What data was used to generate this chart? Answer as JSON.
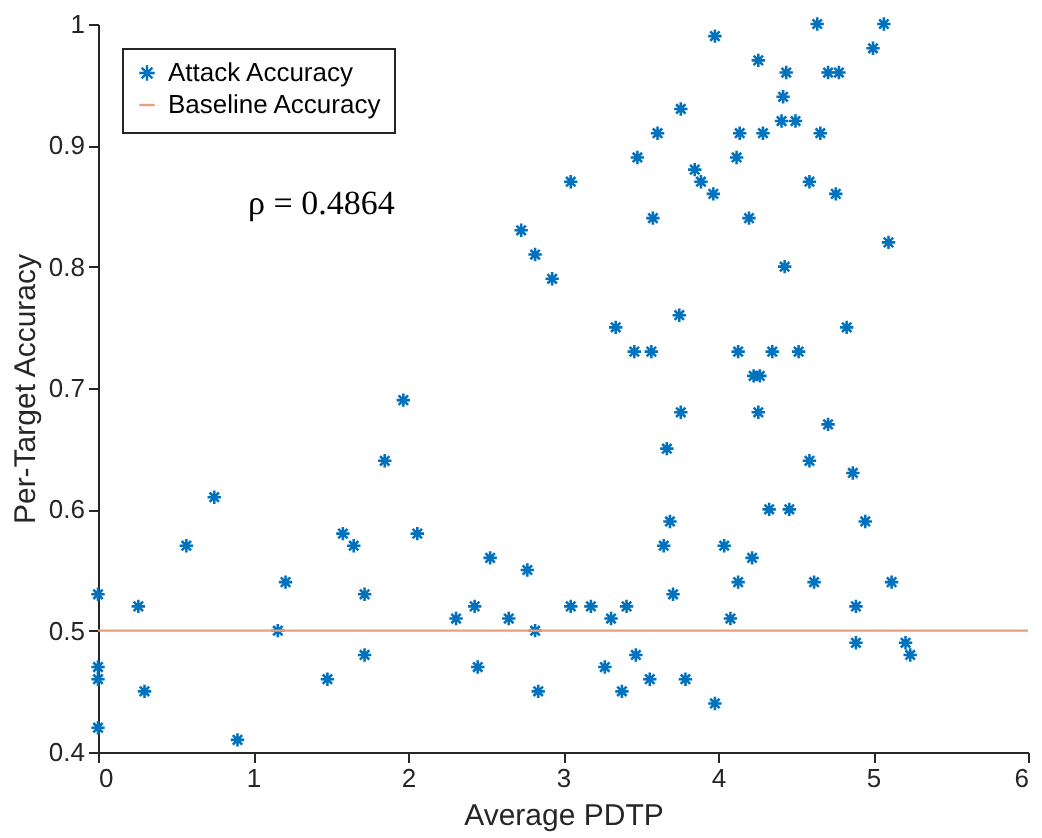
{
  "chart_data": {
    "type": "scatter",
    "xlabel": "Average PDTP",
    "ylabel": "Per-Target Accuracy",
    "xlim": [
      0,
      6
    ],
    "xticks": [
      0,
      1,
      2,
      3,
      4,
      5,
      6
    ],
    "ylim": [
      0.4,
      1
    ],
    "yticks": [
      0.4,
      0.5,
      0.6,
      0.7,
      0.8,
      0.9,
      1
    ],
    "grid": false,
    "legend": "top left",
    "annotations": [
      "ρ = 0.4864"
    ],
    "series": [
      {
        "name": "Attack Accuracy",
        "color": "#0072bd",
        "marker": "cross",
        "x": [
          0,
          0,
          0,
          0,
          0.26,
          0.3,
          0.57,
          0.75,
          0.9,
          1.16,
          1.21,
          1.48,
          1.58,
          1.65,
          1.72,
          1.72,
          1.85,
          1.97,
          2.06,
          2.31,
          2.43,
          2.45,
          2.53,
          2.65,
          2.77,
          2.82,
          2.84,
          2.73,
          2.82,
          2.93,
          3.05,
          3.05,
          3.98,
          4.64,
          5.07,
          5.0,
          4.26,
          4.44,
          4.71,
          4.78,
          4.42,
          3.76,
          4.41,
          4.5,
          3.61,
          4.14,
          4.29,
          4.66,
          3.48,
          4.12,
          3.85,
          3.89,
          3.97,
          4.59,
          4.76,
          3.58,
          4.2,
          5.1,
          4.43,
          3.34,
          3.75,
          4.83,
          3.46,
          3.57,
          4.13,
          4.35,
          4.52,
          4.23,
          4.27,
          3.76,
          4.26,
          4.71,
          3.67,
          4.59,
          4.87,
          4.33,
          4.46,
          3.69,
          4.95,
          3.65,
          4.04,
          4.22,
          4.13,
          4.62,
          5.12,
          3.71,
          3.18,
          3.41,
          4.89,
          3.31,
          4.08,
          4.89,
          5.21,
          5.24,
          3.47,
          3.27,
          3.56,
          3.79,
          3.38,
          3.98
        ],
        "values": [
          0.53,
          0.47,
          0.46,
          0.42,
          0.52,
          0.45,
          0.57,
          0.61,
          0.41,
          0.5,
          0.54,
          0.46,
          0.58,
          0.57,
          0.53,
          0.48,
          0.64,
          0.69,
          0.58,
          0.51,
          0.52,
          0.47,
          0.56,
          0.51,
          0.55,
          0.5,
          0.45,
          0.83,
          0.81,
          0.79,
          0.87,
          0.52,
          0.99,
          1.0,
          1.0,
          0.98,
          0.97,
          0.96,
          0.96,
          0.96,
          0.94,
          0.93,
          0.92,
          0.92,
          0.91,
          0.91,
          0.91,
          0.91,
          0.89,
          0.89,
          0.88,
          0.87,
          0.86,
          0.87,
          0.86,
          0.84,
          0.84,
          0.82,
          0.8,
          0.75,
          0.76,
          0.75,
          0.73,
          0.73,
          0.73,
          0.73,
          0.73,
          0.71,
          0.71,
          0.68,
          0.68,
          0.67,
          0.65,
          0.64,
          0.63,
          0.6,
          0.6,
          0.59,
          0.59,
          0.57,
          0.57,
          0.56,
          0.54,
          0.54,
          0.54,
          0.53,
          0.52,
          0.52,
          0.52,
          0.51,
          0.51,
          0.49,
          0.49,
          0.48,
          0.48,
          0.47,
          0.46,
          0.46,
          0.45,
          0.44
        ]
      },
      {
        "name": "Baseline Accuracy",
        "color": "#e8a17e",
        "type": "line",
        "x": [
          0,
          6
        ],
        "values": [
          0.5,
          0.5
        ]
      }
    ]
  }
}
